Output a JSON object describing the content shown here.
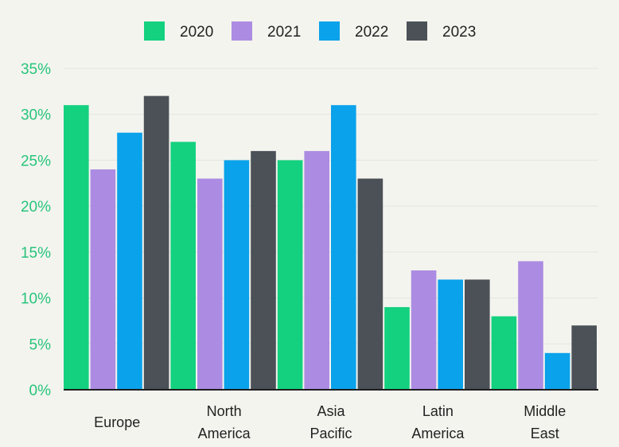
{
  "chart_data": {
    "type": "bar",
    "title": "",
    "xlabel": "",
    "ylabel": "",
    "categories": [
      [
        "Europe"
      ],
      [
        "North",
        "America"
      ],
      [
        "Asia",
        "Pacific"
      ],
      [
        "Latin",
        "America"
      ],
      [
        "Middle",
        "East"
      ]
    ],
    "series": [
      {
        "name": "2020",
        "color": "#14d17f",
        "values": [
          31,
          27,
          25,
          9,
          8
        ]
      },
      {
        "name": "2021",
        "color": "#ac8ce2",
        "values": [
          24,
          23,
          26,
          13,
          14
        ]
      },
      {
        "name": "2022",
        "color": "#0aa2ea",
        "values": [
          28,
          25,
          31,
          12,
          4
        ]
      },
      {
        "name": "2023",
        "color": "#4b5157",
        "values": [
          32,
          26,
          23,
          12,
          7
        ]
      }
    ],
    "ylim": [
      0,
      35
    ],
    "yticks": [
      0,
      5,
      10,
      15,
      20,
      25,
      30,
      35
    ],
    "ytick_suffix": "%",
    "grid": true,
    "legend_position": "top-center",
    "colors": {
      "background": "#f4f4ef",
      "tick_text": "#27c47a",
      "grid": "#dfe7dc",
      "axis": "#1e1e1e"
    }
  }
}
